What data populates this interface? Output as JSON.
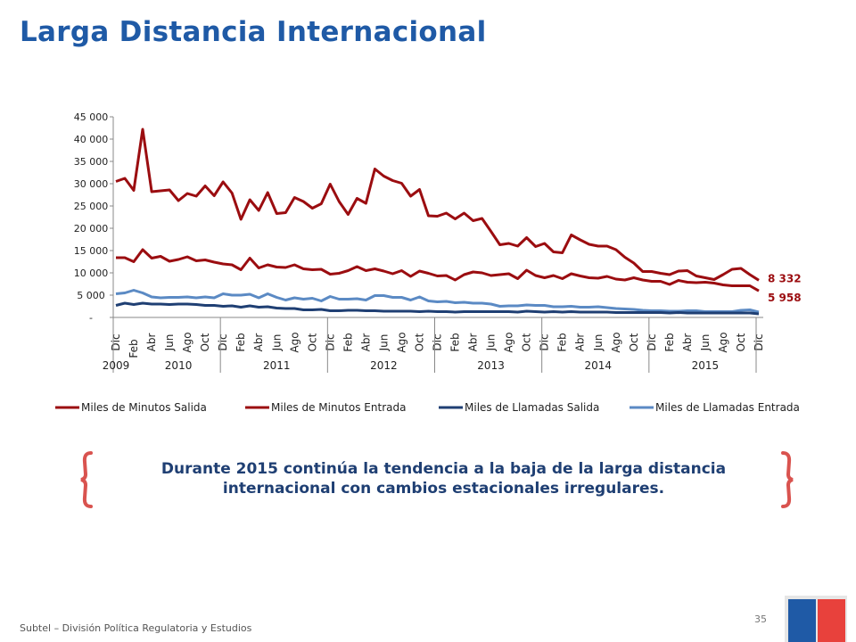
{
  "page": {
    "title": "Larga Distancia Internacional",
    "callout_part1": "Durante ",
    "callout_year": "2015",
    "callout_part2": " continúa la tendencia a la baja de la larga distancia internacional con cambios estacionales irregulares.",
    "footer": "Subtel – División Política Regulatoria y Estudios",
    "page_number": "35"
  },
  "colors": {
    "title": "#1f5aa6",
    "dark_red": "#9b0d10",
    "dark_blue": "#1f3f73",
    "light_blue": "#5b8ac4",
    "brace": "#d9534f",
    "flag_blue": "#1f5aa6",
    "flag_red": "#e8413c"
  },
  "chart_data": {
    "type": "line",
    "ylim": [
      0,
      45000
    ],
    "y_ticks": [
      0,
      5000,
      10000,
      15000,
      20000,
      25000,
      30000,
      35000,
      40000,
      45000
    ],
    "y_tick_labels": [
      "-",
      "5 000",
      "10 000",
      "15 000",
      "20 000",
      "25 000",
      "30 000",
      "35 000",
      "40 000",
      "45 000"
    ],
    "x_tick_labels": [
      "Dic",
      "Feb",
      "Abr",
      "Jun",
      "Ago",
      "Oct",
      "Dic",
      "Feb",
      "Abr",
      "Jun",
      "Ago",
      "Oct",
      "Dic",
      "Feb",
      "Abr",
      "Jun",
      "Ago",
      "Oct",
      "Dic",
      "Feb",
      "Abr",
      "Jun",
      "Ago",
      "Oct",
      "Dic",
      "Feb",
      "Abr",
      "Jun",
      "Ago",
      "Oct",
      "Dic",
      "Feb",
      "Abr",
      "Jun",
      "Ago",
      "Oct",
      "Dic"
    ],
    "year_labels": [
      "2009",
      "2010",
      "2011",
      "2012",
      "2013",
      "2014",
      "2015"
    ],
    "x_period": "Dic 2009 – Dic 2015 (mensual)",
    "series": [
      {
        "name": "Miles de Minutos Salida",
        "color": "#9b0d10",
        "end_label": "8 332",
        "values": [
          30500,
          31200,
          28500,
          42200,
          28200,
          28400,
          28600,
          26200,
          27800,
          27200,
          29500,
          27300,
          30400,
          27900,
          22000,
          26400,
          24000,
          28000,
          23300,
          23500,
          26900,
          26000,
          24500,
          25500,
          29900,
          26000,
          23100,
          26700,
          25600,
          33300,
          31700,
          30700,
          30100,
          27200,
          28700,
          22800,
          22700,
          23400,
          22100,
          23400,
          21700,
          22200,
          19300,
          16300,
          16600,
          16000,
          17900,
          15900,
          16600,
          14700,
          14500,
          18500,
          17400,
          16400,
          16000,
          16000,
          15200,
          13500,
          12200,
          10300,
          10300,
          9900,
          9600,
          10400,
          10500,
          9300,
          8900,
          8500,
          9600,
          10800,
          11000,
          9600,
          8332
        ]
      },
      {
        "name": "Miles de Minutos Entrada",
        "color": "#9b0d10",
        "end_label": "5 958",
        "values": [
          13400,
          13400,
          12500,
          15200,
          13300,
          13700,
          12600,
          13000,
          13600,
          12700,
          12900,
          12400,
          12000,
          11800,
          10700,
          13300,
          11100,
          11800,
          11300,
          11200,
          11800,
          10900,
          10700,
          10800,
          9700,
          9900,
          10500,
          11400,
          10500,
          10900,
          10400,
          9800,
          10500,
          9200,
          10400,
          9900,
          9300,
          9400,
          8400,
          9600,
          10200,
          10000,
          9400,
          9600,
          9800,
          8700,
          10600,
          9400,
          8900,
          9400,
          8700,
          9800,
          9300,
          8900,
          8800,
          9200,
          8600,
          8400,
          8900,
          8400,
          8100,
          8100,
          7400,
          8300,
          7900,
          7800,
          7900,
          7700,
          7300,
          7100,
          7100,
          7100,
          5958
        ]
      },
      {
        "name": "Miles de Llamadas Salida",
        "color": "#1f3f73",
        "values": [
          2700,
          3200,
          2900,
          3200,
          3000,
          3000,
          2900,
          3000,
          3000,
          2900,
          2700,
          2700,
          2500,
          2600,
          2300,
          2600,
          2300,
          2400,
          2100,
          2000,
          2000,
          1700,
          1700,
          1800,
          1500,
          1500,
          1600,
          1600,
          1500,
          1500,
          1400,
          1400,
          1400,
          1400,
          1300,
          1400,
          1300,
          1300,
          1200,
          1300,
          1300,
          1300,
          1300,
          1300,
          1300,
          1200,
          1400,
          1300,
          1200,
          1300,
          1200,
          1300,
          1200,
          1200,
          1200,
          1200,
          1100,
          1100,
          1100,
          1100,
          1100,
          1100,
          1000,
          1100,
          1000,
          1000,
          1000,
          1000,
          1000,
          1000,
          1000,
          1000,
          800
        ]
      },
      {
        "name": "Miles de Llamadas Entrada",
        "color": "#5b8ac4",
        "values": [
          5300,
          5500,
          6100,
          5500,
          4600,
          4400,
          4500,
          4500,
          4600,
          4400,
          4600,
          4400,
          5300,
          5000,
          5000,
          5200,
          4400,
          5300,
          4500,
          3900,
          4400,
          4100,
          4300,
          3700,
          4700,
          4100,
          4100,
          4200,
          3900,
          4900,
          4900,
          4500,
          4500,
          3900,
          4600,
          3700,
          3500,
          3600,
          3300,
          3400,
          3200,
          3200,
          3000,
          2500,
          2600,
          2600,
          2800,
          2700,
          2700,
          2400,
          2400,
          2500,
          2300,
          2300,
          2400,
          2200,
          2000,
          1900,
          1800,
          1600,
          1500,
          1500,
          1400,
          1400,
          1500,
          1500,
          1300,
          1300,
          1300,
          1300,
          1600,
          1700,
          1200
        ]
      }
    ],
    "legend_position": "bottom",
    "grid": false
  }
}
